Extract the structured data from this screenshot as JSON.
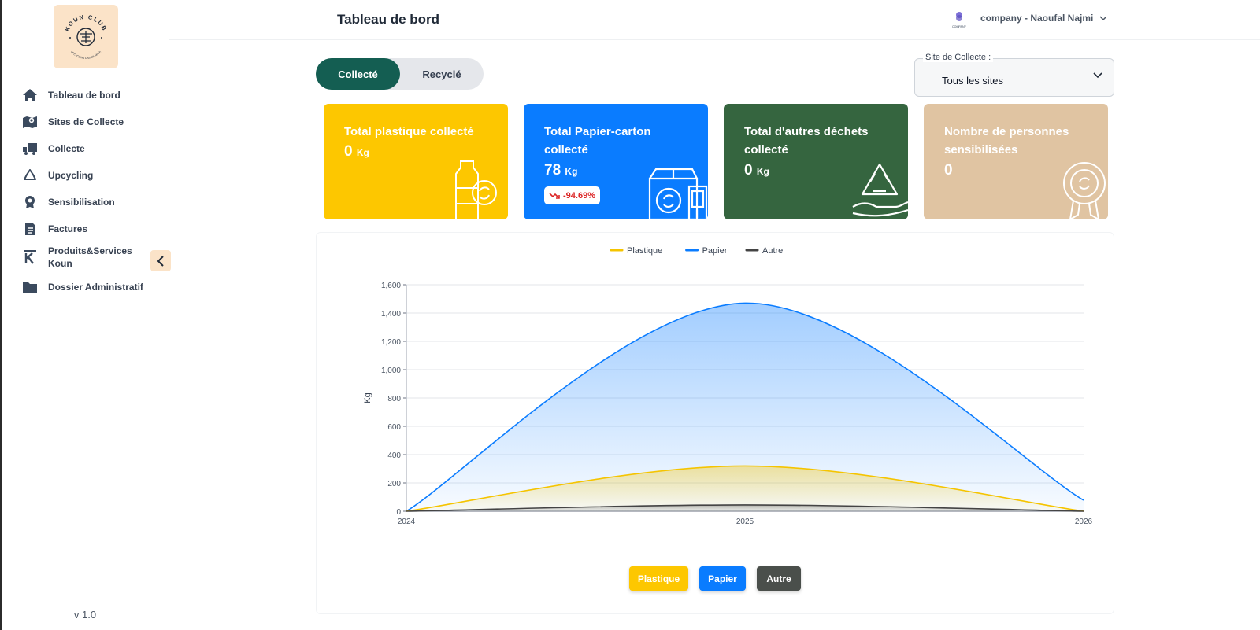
{
  "app": {
    "version": "v 1.0",
    "logo_text": "KOUN CLUB",
    "logo_subtext": "UPCYCLING CASABLANCA"
  },
  "sidebar": {
    "items": [
      {
        "label": "Tableau de bord",
        "icon": "home-icon"
      },
      {
        "label": "Sites de Collecte",
        "icon": "map-icon"
      },
      {
        "label": "Collecte",
        "icon": "truck-icon"
      },
      {
        "label": "Upcycling",
        "icon": "recycle-icon"
      },
      {
        "label": "Sensibilisation",
        "icon": "award-icon"
      },
      {
        "label": "Factures",
        "icon": "invoice-icon"
      },
      {
        "label": "Produits&Services Koun",
        "icon": "k-logo-icon"
      },
      {
        "label": "Dossier Administratif",
        "icon": "folder-icon"
      }
    ]
  },
  "header": {
    "title": "Tableau de bord",
    "user": "company -  Naoufal Najmi",
    "company_logo_text": "COMPANY"
  },
  "toggle": {
    "active": "Collecté",
    "inactive": "Recyclé"
  },
  "site_select": {
    "legend": "Site de Collecte :",
    "value": "Tous les sites"
  },
  "cards": [
    {
      "title": "Total plastique collecté",
      "value": "0",
      "unit": "Kg",
      "color": "#fdc700"
    },
    {
      "title": "Total Papier-carton collecté",
      "value": "78",
      "unit": "Kg",
      "badge": "-94.69%",
      "color": "#0a7cff"
    },
    {
      "title": "Total d'autres déchets collecté",
      "value": "0",
      "unit": "Kg",
      "color": "#35653f"
    },
    {
      "title": "Nombre de personnes sensibilisées",
      "value": "0",
      "unit": "",
      "color": "#e0c4a2"
    }
  ],
  "chart_data": {
    "type": "area",
    "x": [
      "2024",
      "2025",
      "2026"
    ],
    "ylabel": "Kg",
    "ylim": [
      0,
      1600
    ],
    "yticks": [
      "0",
      "200",
      "400",
      "600",
      "800",
      "1,000",
      "1,200",
      "1,400",
      "1,600"
    ],
    "grid": true,
    "legend_position": "top",
    "series": [
      {
        "name": "Plastique",
        "values": [
          0,
          320,
          0
        ],
        "color": "#f5c400"
      },
      {
        "name": "Papier",
        "values": [
          0,
          1470,
          78
        ],
        "color": "#0a7cff"
      },
      {
        "name": "Autre",
        "values": [
          0,
          45,
          0
        ],
        "color": "#444444"
      }
    ]
  },
  "legend_buttons": [
    {
      "label": "Plastique",
      "color": "#fdc700"
    },
    {
      "label": "Papier",
      "color": "#0a7cff"
    },
    {
      "label": "Autre",
      "color": "#4a4f4b"
    }
  ]
}
